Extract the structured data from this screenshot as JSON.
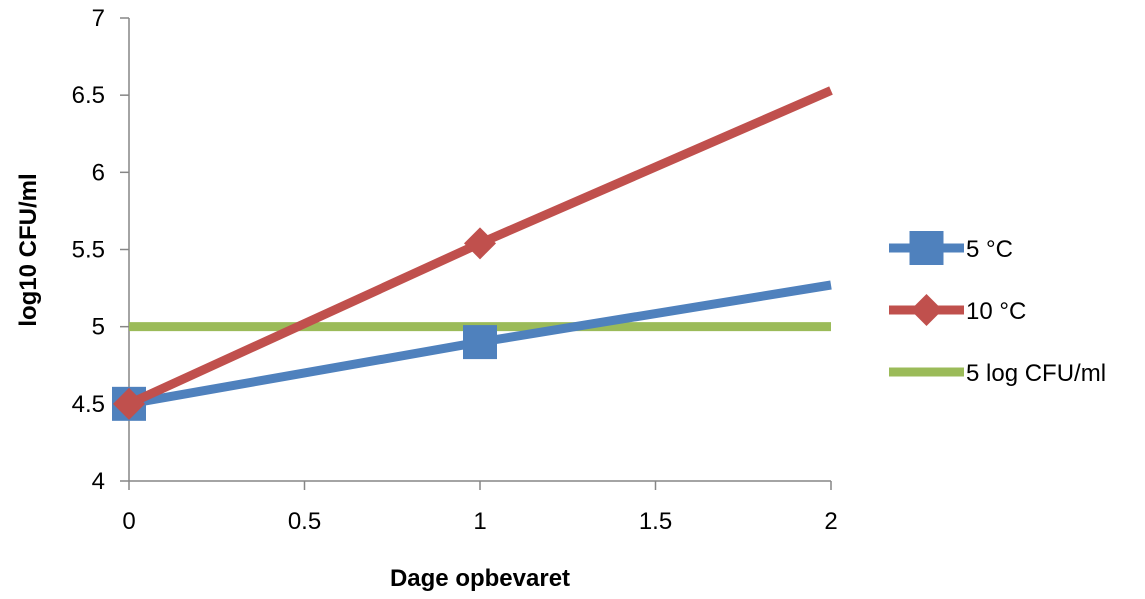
{
  "chart_data": {
    "type": "line",
    "title": "",
    "xlabel": "Dage opbevaret",
    "ylabel": "log10 CFU/ml",
    "xlim": [
      0,
      2
    ],
    "ylim": [
      4,
      7
    ],
    "xticks": [
      0,
      0.5,
      1,
      1.5,
      2
    ],
    "yticks": [
      4,
      4.5,
      5,
      5.5,
      6,
      6.5,
      7
    ],
    "xtick_labels": [
      "0",
      "0.5",
      "1",
      "1.5",
      "2"
    ],
    "ytick_labels": [
      "4",
      "4.5",
      "5",
      "5.5",
      "6",
      "6.5",
      "7"
    ],
    "grid": false,
    "legend_position": "right",
    "series": [
      {
        "name": "5 °C",
        "color": "#4f81bd",
        "marker": "square",
        "x": [
          0,
          1,
          2
        ],
        "y": [
          4.5,
          4.9,
          5.27
        ]
      },
      {
        "name": "10 °C",
        "color": "#c0504d",
        "marker": "diamond",
        "x": [
          0,
          1,
          2
        ],
        "y": [
          4.5,
          5.54,
          6.53
        ]
      },
      {
        "name": "5 log CFU/ml",
        "color": "#9bbb59",
        "marker": "none",
        "x": [
          0,
          1,
          2
        ],
        "y": [
          5,
          5,
          5
        ]
      }
    ]
  }
}
